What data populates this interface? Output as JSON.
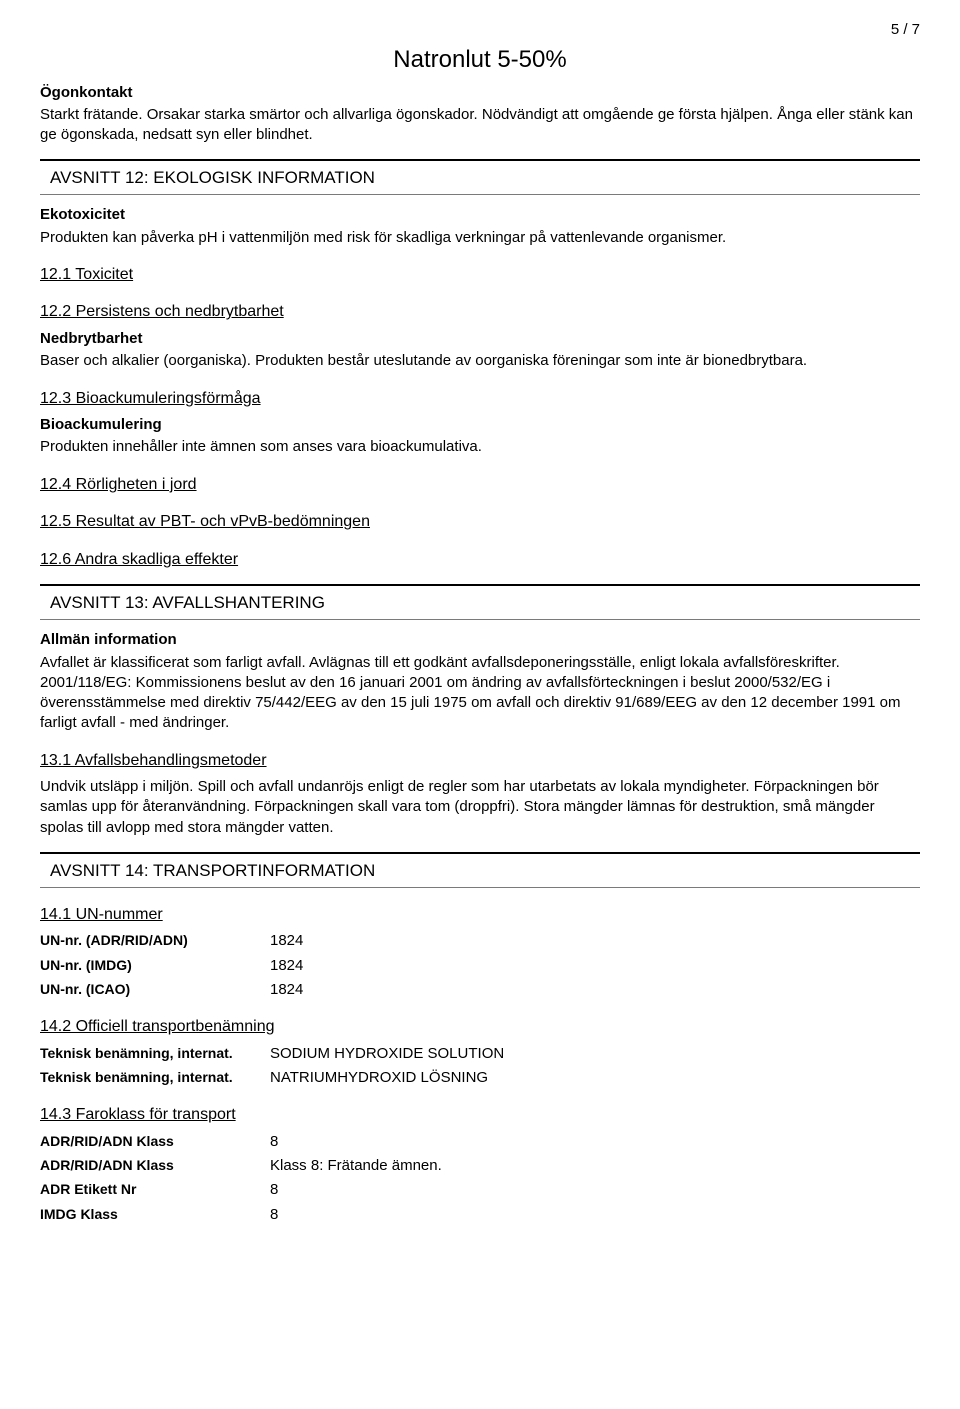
{
  "page_number": "5 / 7",
  "document_title": "Natronlut 5-50%",
  "eye_contact": {
    "label": "Ögonkontakt",
    "text": "Starkt frätande. Orsakar starka smärtor och allvarliga ögonskador. Nödvändigt att omgående ge första hjälpen. Ånga eller stänk kan ge ögonskada,  nedsatt syn eller blindhet."
  },
  "section12": {
    "title": "AVSNITT 12: EKOLOGISK INFORMATION",
    "ecotox_label": "Ekotoxicitet",
    "ecotox_text": "Produkten kan påverka pH i vattenmiljön med risk för skadliga verkningar på vattenlevande organismer.",
    "s12_1": "12.1 Toxicitet",
    "s12_2": "12.2 Persistens och nedbrytbarhet",
    "nedbryt_label": "Nedbrytbarhet",
    "nedbryt_text": "Baser och alkalier (oorganiska). Produkten består uteslutande av oorganiska föreningar som inte är bionedbrytbara.",
    "s12_3": "12.3 Bioackumuleringsförmåga",
    "bioack_label": "Bioackumulering",
    "bioack_text": "Produkten innehåller inte ämnen som anses vara bioackumulativa.",
    "s12_4": "12.4 Rörligheten i jord",
    "s12_5": "12.5 Resultat av PBT- och vPvB-bedömningen",
    "s12_6": "12.6 Andra skadliga effekter"
  },
  "section13": {
    "title": "AVSNITT 13: AVFALLSHANTERING",
    "general_label": "Allmän information",
    "general_text": "Avfallet är klassificerat som farligt avfall. Avlägnas till ett godkänt avfallsdeponeringsställe,  enligt lokala avfallsföreskrifter. 2001/118/EG: Kommissionens beslut av den 16 januari 2001 om ändring av avfallsförteckningen i beslut 2000/532/EG i överensstämmelse med direktiv 75/442/EEG av den 15 juli 1975 om avfall och direktiv 91/689/EEG av den 12 december 1991 om farligt avfall - med ändringer.",
    "s13_1": "13.1 Avfallsbehandlingsmetoder",
    "s13_1_text": "Undvik utsläpp i miljön. Spill och avfall undanröjs enligt de regler som har utarbetats av lokala myndigheter. Förpackningen bör samlas upp för återanvändning. Förpackningen skall vara tom (droppfri). Stora mängder lämnas för destruktion,  små mängder spolas till avlopp med stora mängder vatten."
  },
  "section14": {
    "title": "AVSNITT 14: TRANSPORTINFORMATION",
    "s14_1": "14.1 UN-nummer",
    "un_adr_label": "UN-nr. (ADR/RID/ADN)",
    "un_adr_value": "1824",
    "un_imdg_label": "UN-nr. (IMDG)",
    "un_imdg_value": "1824",
    "un_icao_label": "UN-nr. (ICAO)",
    "un_icao_value": "1824",
    "s14_2": "14.2 Officiell transportbenämning",
    "tech_label": "Teknisk benämning, internat.",
    "tech_value1": "SODIUM HYDROXIDE SOLUTION",
    "tech_value2": "NATRIUMHYDROXID LÖSNING",
    "s14_3": "14.3 Faroklass för transport",
    "adr_class_label": "ADR/RID/ADN Klass",
    "adr_class_value1": "8",
    "adr_class_value2": "Klass 8: Frätande ämnen.",
    "adr_etikett_label": "ADR Etikett Nr",
    "adr_etikett_value": "8",
    "imdg_class_label": "IMDG Klass",
    "imdg_class_value": "8"
  }
}
